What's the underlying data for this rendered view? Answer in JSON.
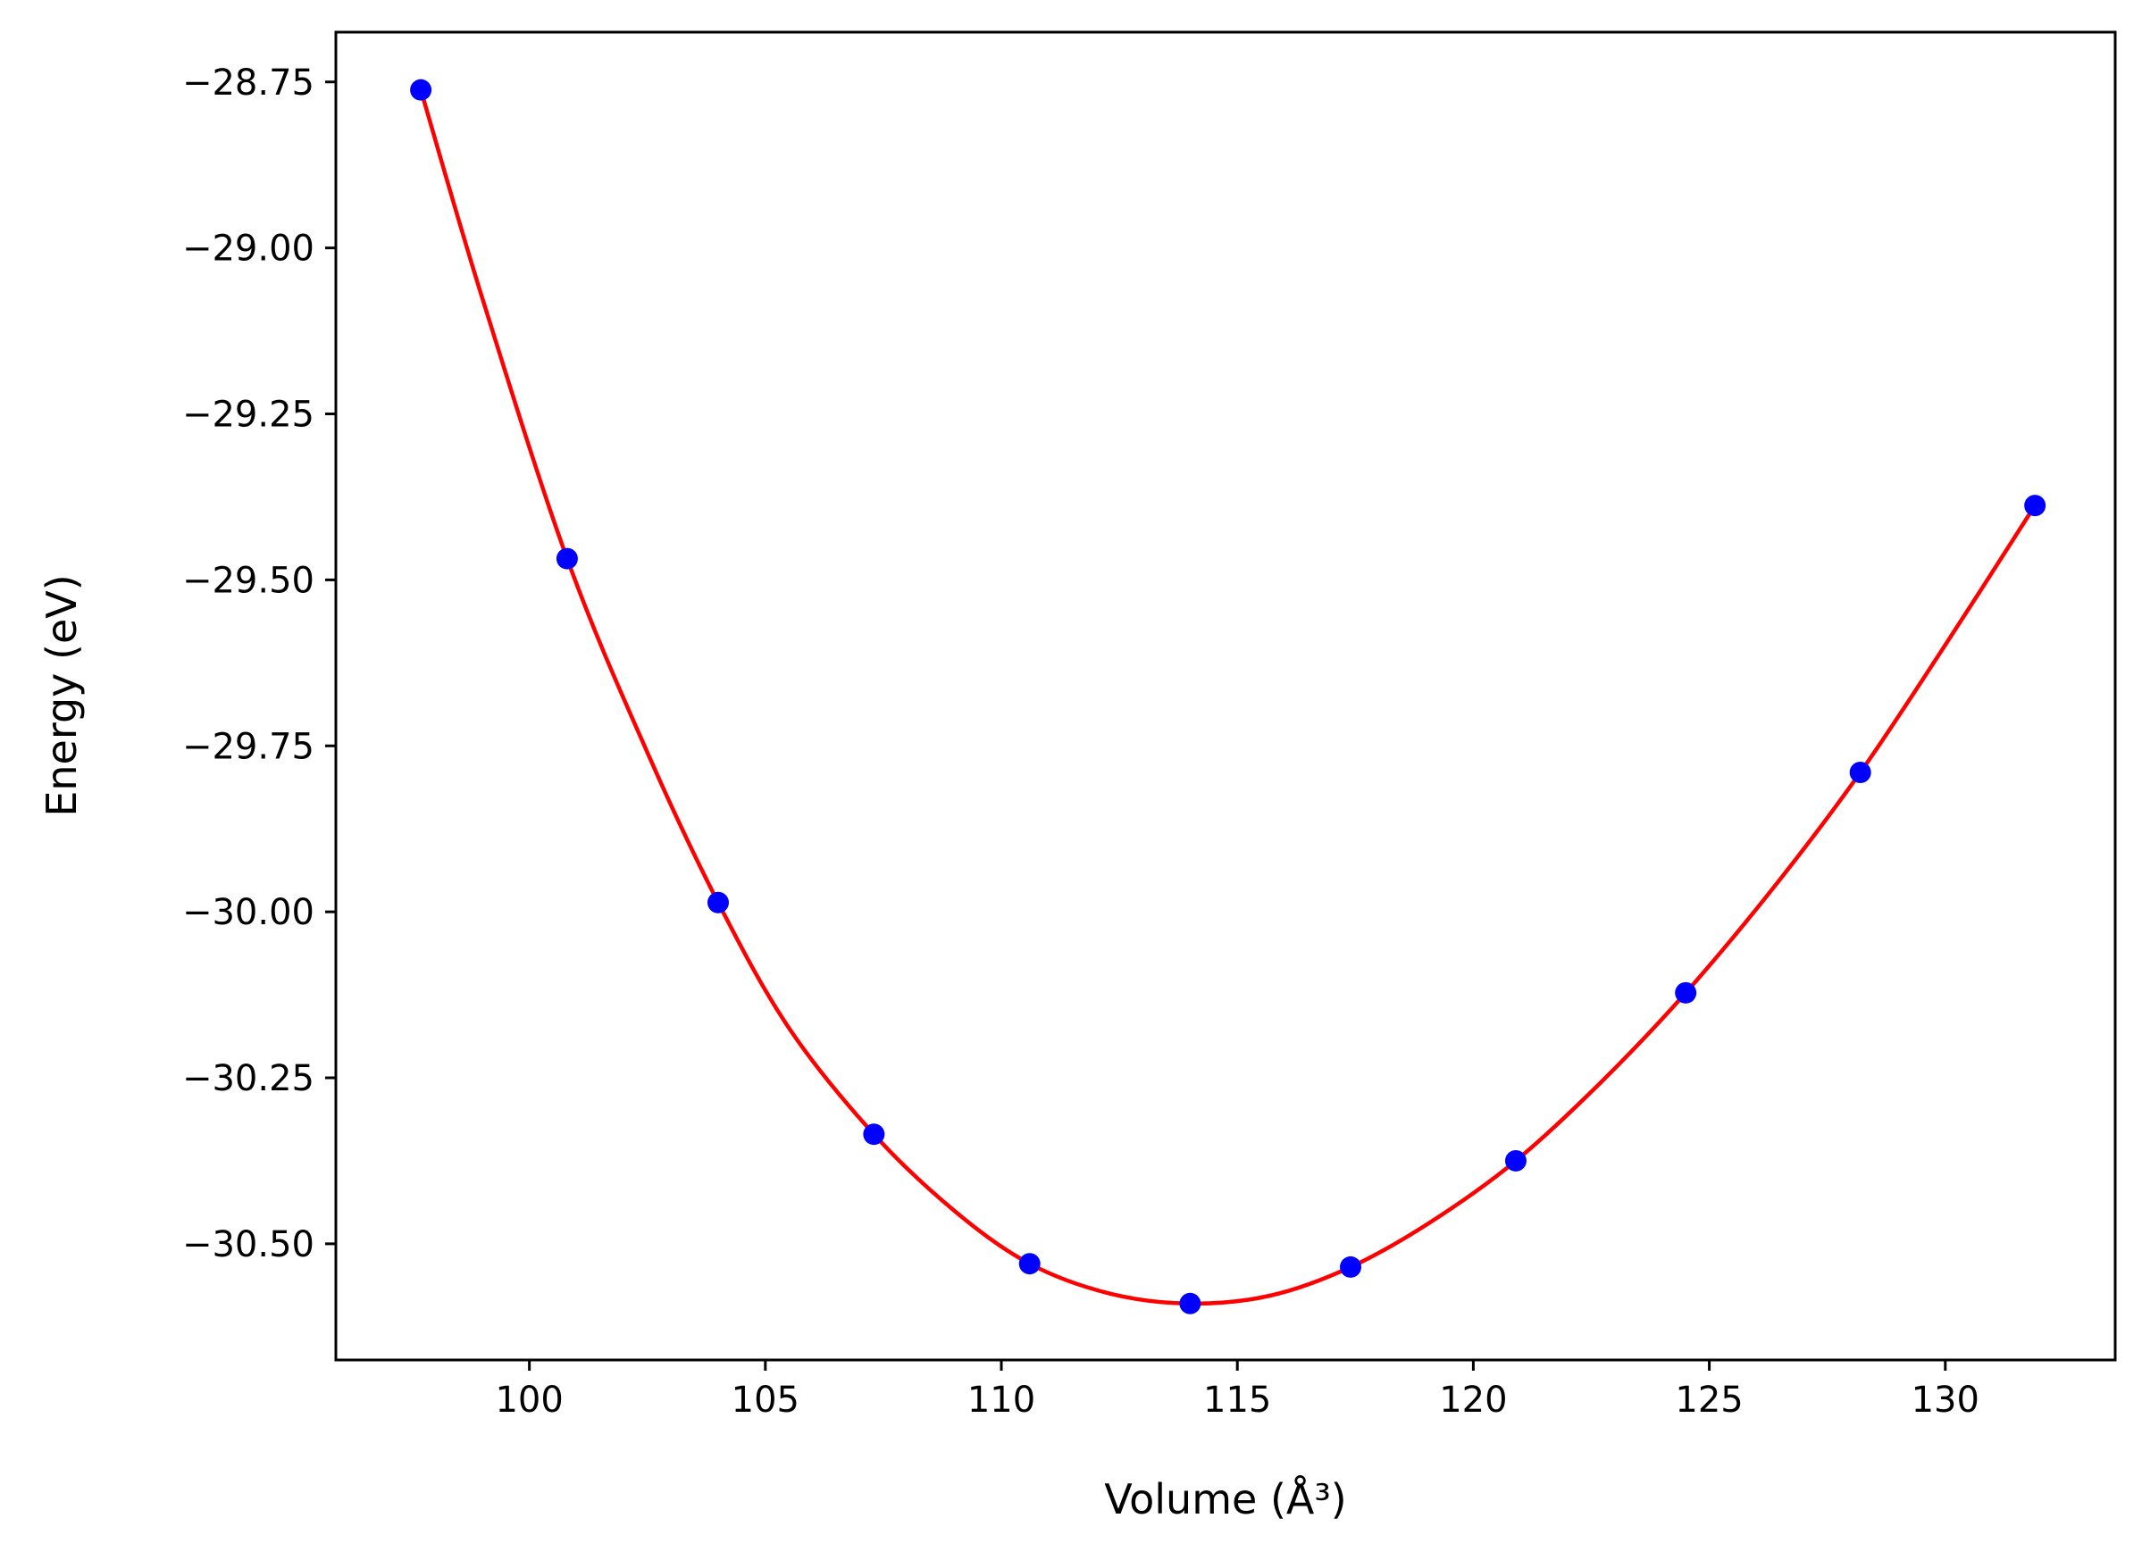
{
  "chart_data": {
    "type": "line",
    "title": "",
    "xlabel": "Volume (Å³)",
    "ylabel": "Energy (eV)",
    "xlim": [
      95.9,
      133.6
    ],
    "ylim": [
      -30.675,
      -28.675
    ],
    "xticks": [
      {
        "value": 100,
        "label": "100"
      },
      {
        "value": 105,
        "label": "105"
      },
      {
        "value": 110,
        "label": "110"
      },
      {
        "value": 115,
        "label": "115"
      },
      {
        "value": 120,
        "label": "120"
      },
      {
        "value": 125,
        "label": "125"
      },
      {
        "value": 130,
        "label": "130"
      }
    ],
    "yticks": [
      {
        "value": -28.75,
        "label": "−28.75"
      },
      {
        "value": -29.0,
        "label": "−29.00"
      },
      {
        "value": -29.25,
        "label": "−29.25"
      },
      {
        "value": -29.5,
        "label": "−29.50"
      },
      {
        "value": -29.75,
        "label": "−29.75"
      },
      {
        "value": -30.0,
        "label": "−30.00"
      },
      {
        "value": -30.25,
        "label": "−30.25"
      },
      {
        "value": -30.5,
        "label": "−30.50"
      }
    ],
    "grid": false,
    "series": [
      {
        "kind": "scatter",
        "color": "#0000ff",
        "x": [
          97.7,
          100.8,
          104.0,
          107.3,
          110.6,
          114.0,
          117.4,
          120.9,
          124.5,
          128.2,
          131.9
        ],
        "y": [
          -28.762,
          -29.468,
          -29.986,
          -30.335,
          -30.53,
          -30.59,
          -30.535,
          -30.375,
          -30.122,
          -29.79,
          -29.388
        ]
      },
      {
        "kind": "line",
        "color": "#ff0000",
        "x": [
          97.7,
          99.0,
          100.8,
          102.5,
          104.0,
          105.5,
          107.3,
          109.0,
          110.6,
          112.3,
          114.0,
          115.7,
          117.4,
          119.1,
          120.9,
          122.7,
          124.5,
          126.4,
          128.2,
          130.0,
          131.9
        ],
        "y": [
          -28.762,
          -29.075,
          -29.468,
          -29.76,
          -29.986,
          -30.175,
          -30.335,
          -30.45,
          -30.53,
          -30.575,
          -30.59,
          -30.578,
          -30.535,
          -30.467,
          -30.375,
          -30.257,
          -30.122,
          -29.96,
          -29.79,
          -29.598,
          -29.388
        ]
      }
    ]
  }
}
